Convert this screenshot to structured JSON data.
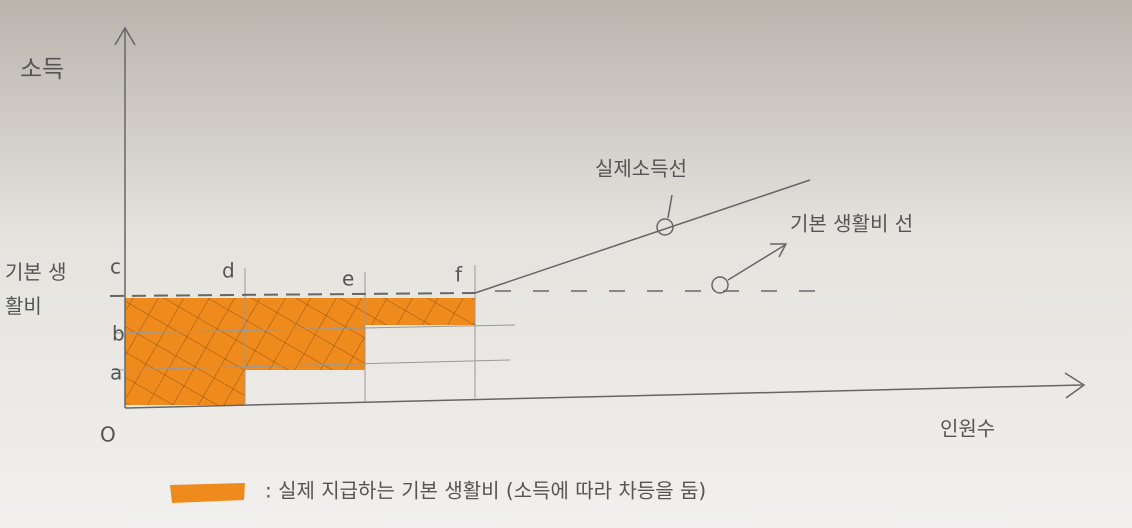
{
  "axes": {
    "y_label": "소득",
    "x_label": "인원수",
    "origin": "O"
  },
  "levels": {
    "basic_living_cost": "기본 생활비",
    "c": "c",
    "b": "b",
    "a": "a"
  },
  "points": {
    "d": "d",
    "e": "e",
    "f": "f"
  },
  "annotations": {
    "actual_income_line": "실제소득선",
    "basic_living_cost_line": "기본 생활비 선"
  },
  "legend": {
    "text": ": 실제 지급하는 기본 생활비 (소득에 따라 차등을 둠)"
  }
}
